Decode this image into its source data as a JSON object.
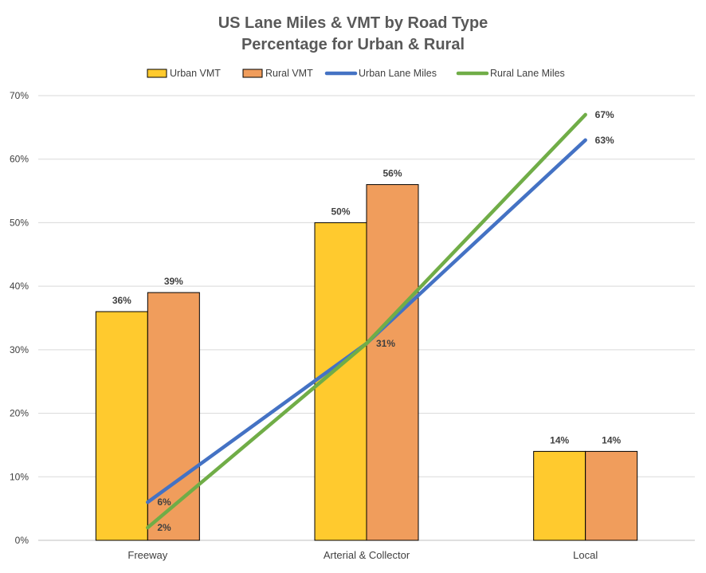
{
  "chart_data": {
    "type": "bar",
    "title": [
      "US Lane Miles & VMT by Road Type",
      "Percentage for Urban & Rural"
    ],
    "categories": [
      "Freeway",
      "Arterial & Collector",
      "Local"
    ],
    "ylim": [
      0,
      70
    ],
    "yticks": [
      0,
      10,
      20,
      30,
      40,
      50,
      60,
      70
    ],
    "ytick_labels": [
      "0%",
      "10%",
      "20%",
      "30%",
      "40%",
      "50%",
      "60%",
      "70%"
    ],
    "grid": true,
    "legend_position": "top",
    "series": [
      {
        "name": "Urban VMT",
        "kind": "bar",
        "color": "#FFCA2E",
        "values": [
          36,
          50,
          14
        ],
        "labels": [
          "36%",
          "50%",
          "14%"
        ]
      },
      {
        "name": "Rural VMT",
        "kind": "bar",
        "color": "#F09D5C",
        "values": [
          39,
          56,
          14
        ],
        "labels": [
          "39%",
          "56%",
          "14%"
        ]
      },
      {
        "name": "Urban Lane Miles",
        "kind": "line",
        "color": "#4472C4",
        "values": [
          6,
          31,
          63
        ],
        "labels": [
          "6%",
          "31%",
          "63%"
        ]
      },
      {
        "name": "Rural Lane Miles",
        "kind": "line",
        "color": "#70AD47",
        "values": [
          2,
          31,
          67
        ],
        "labels": [
          "2%",
          "",
          "67%"
        ]
      }
    ]
  }
}
